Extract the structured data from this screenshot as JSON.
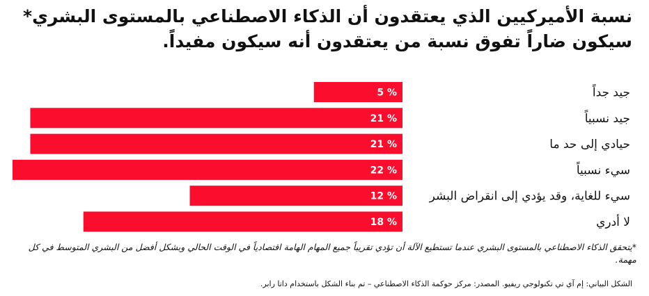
{
  "title": "نسبة الأميركيين الذي يعتقدون أن الذكاء الاصطناعي بالمستوى البشري* سيكون ضاراً تفوق نسبة من يعتقدون أنه سيكون مفيداً.",
  "footnote": "*يتحقق الذكاء الاصطناعي بالمستوى البشري عندما تستطيع الآلة أن تؤدي تقريباً جميع المهام الهامة اقتصادياً في الوقت الحالي وبشكل أفضل من البشري المتوسط في كل مهمة.",
  "credit": "الشكل البياني: إم آي تي تكنولوجي ريفيو. المصدر: مركز حوكمة الذكاء الاصطناعي – تم بناء الشكل باستخدام داتا رابر.",
  "colors": {
    "bar": "#fb0d2d",
    "bar_label": "#ffffff"
  },
  "chart_data": {
    "type": "bar",
    "orientation": "horizontal",
    "categories": [
      "جيد جداً",
      "جيد نسبياً",
      "حيادي إلى حد ما",
      "سيء نسبياً",
      "سيء للغاية، وقد يؤدي إلى انقراض البشر",
      "لا أدري"
    ],
    "values": [
      5,
      21,
      21,
      22,
      12,
      18
    ],
    "value_labels": [
      "5 %",
      "21 %",
      "21 %",
      "22 %",
      "12 %",
      "18 %"
    ],
    "unit": "%",
    "xlim": [
      0,
      22
    ],
    "bar_anchor": "right",
    "title": "",
    "xlabel": "",
    "ylabel": ""
  }
}
